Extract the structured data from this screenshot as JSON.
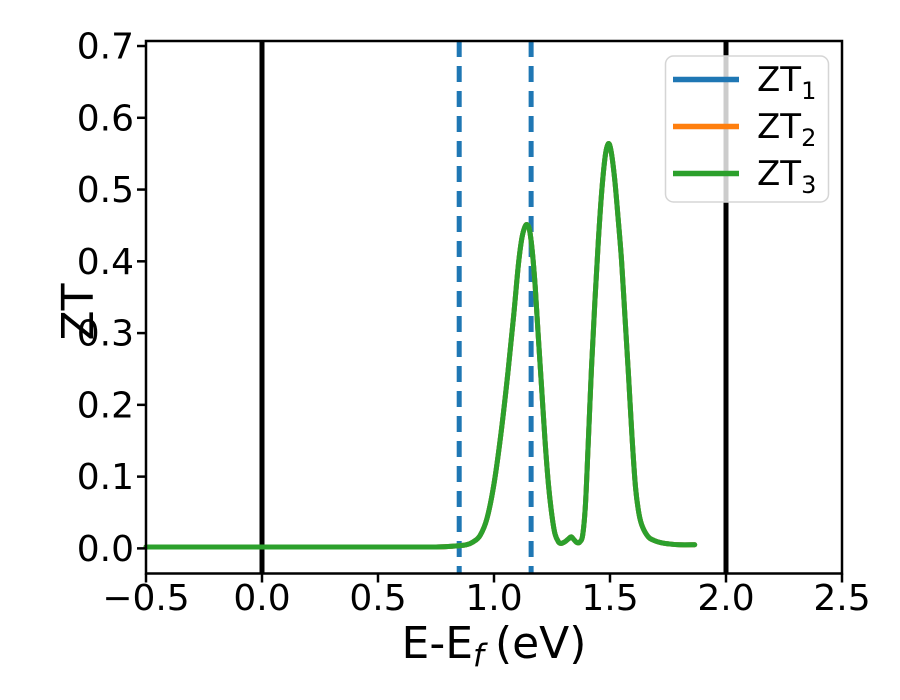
{
  "chart_data": {
    "type": "line",
    "title": "",
    "xlabel": {
      "full": "E-E_f (eV)",
      "pre": "E-E",
      "sub": "f",
      "post": "(eV)"
    },
    "ylabel": "ZT",
    "xlim": [
      -0.5,
      2.5
    ],
    "ylim": [
      -0.035,
      0.707
    ],
    "grid": false,
    "xticks": {
      "values": [
        -0.5,
        0.0,
        0.5,
        1.0,
        1.5,
        2.0,
        2.5
      ],
      "labels": [
        "−0.5",
        "0.0",
        "0.5",
        "1.0",
        "1.5",
        "2.0",
        "2.5"
      ]
    },
    "yticks": {
      "values": [
        0.0,
        0.1,
        0.2,
        0.3,
        0.4,
        0.5,
        0.6,
        0.7
      ],
      "labels": [
        "0.0",
        "0.1",
        "0.2",
        "0.3",
        "0.4",
        "0.5",
        "0.6",
        "0.7"
      ]
    },
    "x": [
      -0.5,
      -0.35,
      -0.2,
      -0.05,
      0.1,
      0.25,
      0.4,
      0.55,
      0.65,
      0.75,
      0.82,
      0.88,
      0.91,
      0.94,
      0.97,
      1.0,
      1.03,
      1.06,
      1.085,
      1.105,
      1.12,
      1.133,
      1.143,
      1.153,
      1.165,
      1.178,
      1.19,
      1.205,
      1.22,
      1.235,
      1.25,
      1.263,
      1.278,
      1.29,
      1.305,
      1.32,
      1.333,
      1.345,
      1.358,
      1.37,
      1.382,
      1.394,
      1.406,
      1.42,
      1.435,
      1.45,
      1.465,
      1.48,
      1.493,
      1.505,
      1.52,
      1.535,
      1.55,
      1.565,
      1.58,
      1.595,
      1.61,
      1.625,
      1.64,
      1.665,
      1.69,
      1.72,
      1.76,
      1.8,
      1.865
    ],
    "y_shared": [
      0.002,
      0.002,
      0.002,
      0.002,
      0.002,
      0.002,
      0.002,
      0.002,
      0.002,
      0.002,
      0.003,
      0.005,
      0.009,
      0.018,
      0.042,
      0.09,
      0.16,
      0.245,
      0.325,
      0.395,
      0.432,
      0.448,
      0.451,
      0.444,
      0.414,
      0.363,
      0.3,
      0.225,
      0.15,
      0.088,
      0.045,
      0.02,
      0.009,
      0.007,
      0.009,
      0.013,
      0.016,
      0.012,
      0.008,
      0.009,
      0.018,
      0.06,
      0.145,
      0.25,
      0.345,
      0.43,
      0.5,
      0.548,
      0.564,
      0.553,
      0.515,
      0.46,
      0.4,
      0.32,
      0.24,
      0.155,
      0.085,
      0.048,
      0.03,
      0.016,
      0.011,
      0.008,
      0.006,
      0.005,
      0.005
    ],
    "curves_overlap": true,
    "series": [
      {
        "name": "ZT1",
        "color": "#1f77b4",
        "y_ref": "y_shared"
      },
      {
        "name": "ZT2",
        "color": "#ff7f0e",
        "y_ref": "y_shared"
      },
      {
        "name": "ZT3",
        "color": "#2ca02c",
        "y_ref": "y_shared"
      }
    ],
    "peaks": [
      {
        "x": 1.143,
        "y": 0.451
      },
      {
        "x": 1.493,
        "y": 0.564
      }
    ],
    "vlines": [
      {
        "x": 0.0,
        "style": "solid",
        "color": "#000000"
      },
      {
        "x": 2.0,
        "style": "solid",
        "color": "#000000"
      },
      {
        "x": 0.85,
        "style": "dashed",
        "color": "#1f77b4"
      },
      {
        "x": 1.16,
        "style": "dashed",
        "color": "#1f77b4"
      }
    ],
    "legend": {
      "position": "upper right",
      "entries": [
        {
          "label": "ZT",
          "sub": "1",
          "color": "#1f77b4"
        },
        {
          "label": "ZT",
          "sub": "2",
          "color": "#ff7f0e"
        },
        {
          "label": "ZT",
          "sub": "3",
          "color": "#2ca02c"
        }
      ]
    }
  }
}
